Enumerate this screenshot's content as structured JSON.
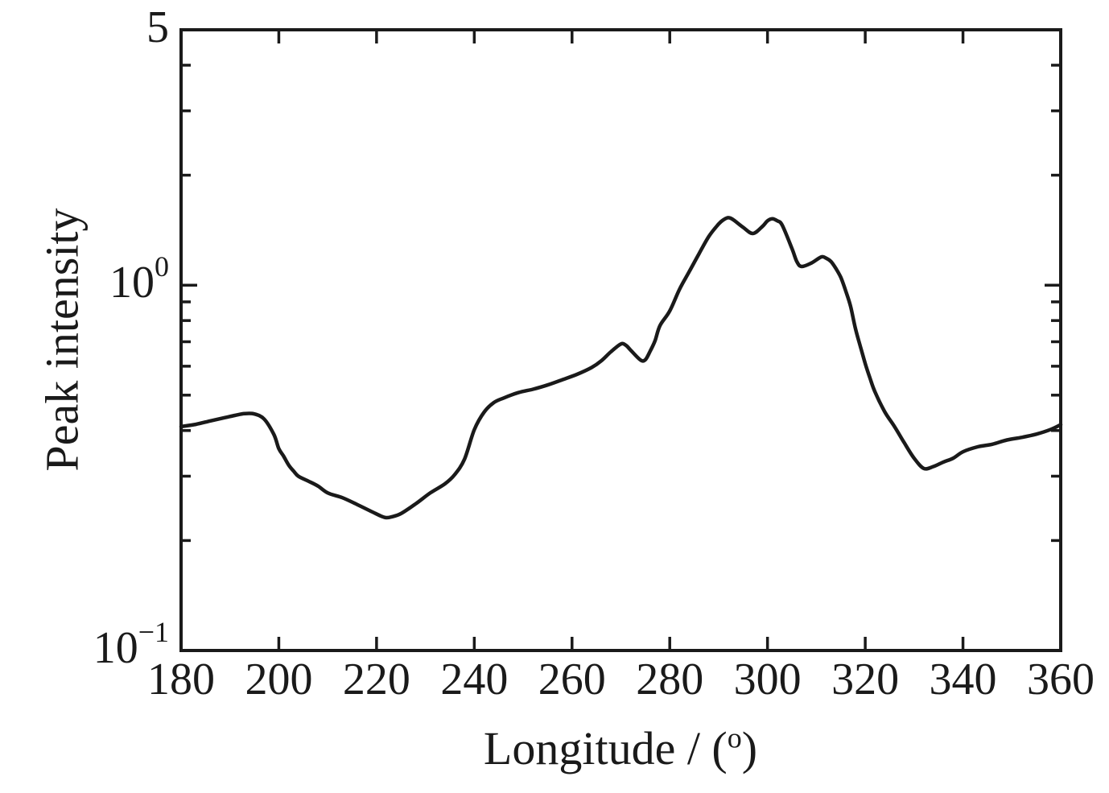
{
  "chart_data": {
    "type": "line",
    "title": "",
    "xlabel": {
      "text": "Longitude / (",
      "sup": "o",
      "end": ")"
    },
    "ylabel": "Peak intensity",
    "xlim": [
      180,
      360
    ],
    "ylim": [
      0.1,
      5
    ],
    "yscale": "log",
    "grid": false,
    "legend": "none",
    "background_color": "#ffffff",
    "ink_color": "#1a1a1a",
    "x_ticks": [
      180,
      200,
      220,
      240,
      260,
      280,
      300,
      320,
      340,
      360
    ],
    "y_labeled_ticks": [
      {
        "value": 5,
        "base": "5",
        "exp": ""
      },
      {
        "value": 1,
        "base": "10",
        "exp": "0"
      },
      {
        "value": 0.1,
        "base": "10",
        "exp": "−1"
      }
    ],
    "y_minor_ticks": [
      0.2,
      0.3,
      0.4,
      0.5,
      0.6,
      0.7,
      0.8,
      0.9,
      2,
      3,
      4
    ],
    "series": [
      {
        "name": "peak-intensity-vs-longitude",
        "color": "#1a1a1a",
        "points": [
          [
            180,
            0.41
          ],
          [
            183,
            0.416
          ],
          [
            186,
            0.425
          ],
          [
            189,
            0.434
          ],
          [
            191,
            0.44
          ],
          [
            193,
            0.445
          ],
          [
            195,
            0.444
          ],
          [
            197,
            0.43
          ],
          [
            199,
            0.39
          ],
          [
            200,
            0.357
          ],
          [
            201,
            0.34
          ],
          [
            202,
            0.322
          ],
          [
            203,
            0.31
          ],
          [
            204,
            0.3
          ],
          [
            206,
            0.291
          ],
          [
            208,
            0.282
          ],
          [
            210,
            0.27
          ],
          [
            213,
            0.262
          ],
          [
            216,
            0.251
          ],
          [
            219,
            0.24
          ],
          [
            221,
            0.233
          ],
          [
            222,
            0.231
          ],
          [
            223,
            0.232
          ],
          [
            225,
            0.237
          ],
          [
            228,
            0.252
          ],
          [
            231,
            0.27
          ],
          [
            234,
            0.286
          ],
          [
            236,
            0.303
          ],
          [
            238,
            0.334
          ],
          [
            240,
            0.402
          ],
          [
            242,
            0.449
          ],
          [
            244,
            0.477
          ],
          [
            246,
            0.491
          ],
          [
            249,
            0.508
          ],
          [
            252,
            0.519
          ],
          [
            255,
            0.533
          ],
          [
            258,
            0.551
          ],
          [
            261,
            0.57
          ],
          [
            264,
            0.595
          ],
          [
            266,
            0.621
          ],
          [
            268,
            0.658
          ],
          [
            270,
            0.69
          ],
          [
            271,
            0.685
          ],
          [
            272,
            0.664
          ],
          [
            274,
            0.624
          ],
          [
            275,
            0.625
          ],
          [
            276,
            0.66
          ],
          [
            277,
            0.705
          ],
          [
            278,
            0.775
          ],
          [
            280,
            0.85
          ],
          [
            282,
            0.975
          ],
          [
            284,
            1.09
          ],
          [
            286,
            1.22
          ],
          [
            288,
            1.36
          ],
          [
            290,
            1.47
          ],
          [
            291,
            1.51
          ],
          [
            292,
            1.53
          ],
          [
            293,
            1.51
          ],
          [
            295,
            1.44
          ],
          [
            297,
            1.385
          ],
          [
            299,
            1.45
          ],
          [
            300,
            1.5
          ],
          [
            301,
            1.52
          ],
          [
            302,
            1.5
          ],
          [
            303,
            1.46
          ],
          [
            305,
            1.26
          ],
          [
            306,
            1.16
          ],
          [
            307,
            1.125
          ],
          [
            309,
            1.15
          ],
          [
            311,
            1.195
          ],
          [
            312,
            1.185
          ],
          [
            313,
            1.16
          ],
          [
            314,
            1.11
          ],
          [
            315,
            1.05
          ],
          [
            316,
            0.965
          ],
          [
            317,
            0.875
          ],
          [
            318,
            0.76
          ],
          [
            319,
            0.68
          ],
          [
            320,
            0.61
          ],
          [
            321,
            0.555
          ],
          [
            322,
            0.51
          ],
          [
            324,
            0.45
          ],
          [
            326,
            0.41
          ],
          [
            328,
            0.37
          ],
          [
            330,
            0.336
          ],
          [
            332,
            0.315
          ],
          [
            334,
            0.319
          ],
          [
            336,
            0.328
          ],
          [
            338,
            0.336
          ],
          [
            340,
            0.35
          ],
          [
            343,
            0.361
          ],
          [
            346,
            0.367
          ],
          [
            349,
            0.377
          ],
          [
            352,
            0.383
          ],
          [
            355,
            0.391
          ],
          [
            358,
            0.403
          ],
          [
            360,
            0.415
          ]
        ]
      }
    ]
  }
}
